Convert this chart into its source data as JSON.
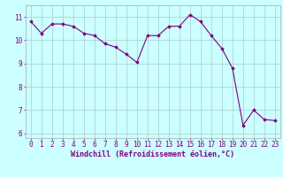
{
  "x": [
    0,
    1,
    2,
    3,
    4,
    5,
    6,
    7,
    8,
    9,
    10,
    11,
    12,
    13,
    14,
    15,
    16,
    17,
    18,
    19,
    20,
    21,
    22,
    23
  ],
  "y": [
    10.8,
    10.3,
    10.7,
    10.7,
    10.6,
    10.3,
    10.2,
    9.85,
    9.7,
    9.4,
    9.05,
    10.2,
    10.2,
    10.6,
    10.6,
    11.1,
    10.8,
    10.2,
    9.65,
    8.8,
    6.35,
    7.0,
    6.6,
    6.55
  ],
  "line_color": "#800080",
  "marker": "D",
  "marker_size": 1.8,
  "bg_color": "#ccffff",
  "grid_color": "#aacccc",
  "xlabel": "Windchill (Refroidissement éolien,°C)",
  "xlabel_color": "#800080",
  "xlabel_fontsize": 6.0,
  "tick_color": "#800080",
  "tick_fontsize": 5.5,
  "ylim": [
    5.8,
    11.5
  ],
  "xlim": [
    -0.5,
    23.5
  ],
  "yticks": [
    6,
    7,
    8,
    9,
    10,
    11
  ],
  "xticks": [
    0,
    1,
    2,
    3,
    4,
    5,
    6,
    7,
    8,
    9,
    10,
    11,
    12,
    13,
    14,
    15,
    16,
    17,
    18,
    19,
    20,
    21,
    22,
    23
  ]
}
